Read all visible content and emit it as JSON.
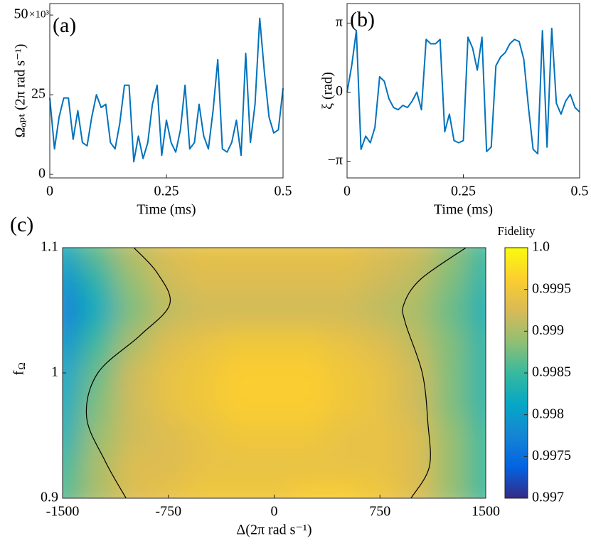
{
  "chart_data": [
    {
      "type": "line",
      "panel": "(a)",
      "xlabel": "Time (ms)",
      "ylabel": "Ωₒₚₜ (2π rad s⁻¹)",
      "y_exponent": "×10³",
      "xlim": [
        0,
        0.5
      ],
      "xticks": [
        0,
        0.25,
        0.5
      ],
      "ylim": [
        -1.1,
        53.6
      ],
      "yticks": [
        0,
        25,
        50
      ],
      "series": [
        {
          "color": "#0072bd",
          "x": [
            0,
            0.01,
            0.02,
            0.03,
            0.04,
            0.05,
            0.06,
            0.07,
            0.08,
            0.09,
            0.1,
            0.11,
            0.12,
            0.13,
            0.14,
            0.15,
            0.16,
            0.17,
            0.18,
            0.19,
            0.2,
            0.21,
            0.22,
            0.23,
            0.24,
            0.25,
            0.26,
            0.27,
            0.28,
            0.29,
            0.3,
            0.31,
            0.32,
            0.33,
            0.34,
            0.35,
            0.36,
            0.37,
            0.38,
            0.39,
            0.4,
            0.41,
            0.42,
            0.43,
            0.44,
            0.45,
            0.46,
            0.47,
            0.48,
            0.49,
            0.5
          ],
          "values": [
            24,
            8,
            18,
            24,
            24,
            11,
            20,
            10,
            9,
            18,
            25,
            21,
            22,
            10,
            8,
            16,
            28,
            28,
            4,
            12,
            5,
            10,
            22,
            28,
            6,
            17,
            10,
            7,
            14,
            28,
            8,
            10,
            22,
            12,
            8,
            20,
            36,
            8,
            7,
            10,
            17,
            6,
            38,
            10,
            22,
            49,
            32,
            18,
            13,
            14,
            27
          ]
        }
      ]
    },
    {
      "type": "line",
      "panel": "(b)",
      "xlabel": "Time (ms)",
      "ylabel": "ξ (rad)",
      "xlim": [
        0,
        0.5
      ],
      "xticks": [
        0,
        0.25,
        0.5
      ],
      "ylim": [
        -3.9,
        4.03
      ],
      "yticks": [
        {
          "value": -3.1416,
          "label": "−π"
        },
        0,
        {
          "value": 3.1416,
          "label": "π"
        }
      ],
      "series": [
        {
          "color": "#0072bd",
          "x": [
            0,
            0.01,
            0.02,
            0.03,
            0.04,
            0.05,
            0.06,
            0.07,
            0.08,
            0.09,
            0.1,
            0.11,
            0.12,
            0.13,
            0.14,
            0.15,
            0.16,
            0.17,
            0.18,
            0.19,
            0.2,
            0.21,
            0.22,
            0.23,
            0.24,
            0.25,
            0.26,
            0.27,
            0.28,
            0.29,
            0.3,
            0.31,
            0.32,
            0.33,
            0.34,
            0.35,
            0.36,
            0.37,
            0.38,
            0.39,
            0.4,
            0.41,
            0.42,
            0.43,
            0.44,
            0.45,
            0.46,
            0.47,
            0.48,
            0.49,
            0.5
          ],
          "values": [
            0,
            1.2,
            2.8,
            -2.6,
            -2.0,
            -2.3,
            -1.6,
            0.7,
            0.5,
            -0.3,
            -0.7,
            -0.8,
            -0.6,
            -0.7,
            -0.4,
            0.0,
            -0.8,
            2.4,
            2.2,
            2.2,
            2.4,
            -1.8,
            -1.0,
            -2.2,
            -2.3,
            -2.2,
            2.5,
            2.0,
            1.0,
            2.5,
            -2.7,
            -2.5,
            1.2,
            1.6,
            1.8,
            2.2,
            2.4,
            2.3,
            1.5,
            -0.7,
            -2.6,
            -2.8,
            2.8,
            -2.5,
            2.9,
            -0.5,
            -1.0,
            -0.4,
            -0.1,
            -0.7,
            -0.9
          ]
        }
      ]
    },
    {
      "type": "heatmap",
      "panel": "(c)",
      "xlabel": "Δ(2π rad s⁻¹)",
      "ylabel": "f",
      "ylabel_sub": "Ω",
      "xlim": [
        -1500,
        1500
      ],
      "xticks": [
        -1500,
        -750,
        0,
        750,
        1500
      ],
      "ylim": [
        0.9,
        1.1
      ],
      "yticks": [
        0.9,
        1,
        1.1
      ],
      "x": [
        -1500,
        -1250,
        -1000,
        -750,
        -500,
        -250,
        0,
        250,
        500,
        750,
        1000,
        1250,
        1500
      ],
      "y": [
        0.9,
        0.925,
        0.95,
        0.975,
        1.0,
        1.025,
        1.05,
        1.075,
        1.1
      ],
      "z": [
        [
          0.9986,
          0.999,
          0.9993,
          0.9994,
          0.9995,
          0.9995,
          0.9995,
          0.9996,
          0.9996,
          0.9995,
          0.9993,
          0.9989,
          0.9985
        ],
        [
          0.9985,
          0.999,
          0.9993,
          0.9993,
          0.9994,
          0.9994,
          0.9994,
          0.9994,
          0.9994,
          0.9994,
          0.9993,
          0.9989,
          0.9985
        ],
        [
          0.9983,
          0.9989,
          0.9992,
          0.9993,
          0.9994,
          0.9995,
          0.9995,
          0.9995,
          0.9994,
          0.9994,
          0.9993,
          0.9989,
          0.9985
        ],
        [
          0.9982,
          0.9988,
          0.9992,
          0.9994,
          0.9995,
          0.9996,
          0.9996,
          0.9996,
          0.9995,
          0.9994,
          0.9992,
          0.9988,
          0.9984
        ],
        [
          0.9981,
          0.9987,
          0.9992,
          0.9994,
          0.9995,
          0.9996,
          0.9996,
          0.9996,
          0.9995,
          0.9994,
          0.9992,
          0.9988,
          0.9984
        ],
        [
          0.9979,
          0.9985,
          0.999,
          0.9993,
          0.9994,
          0.9995,
          0.9995,
          0.9995,
          0.9994,
          0.9993,
          0.9991,
          0.9988,
          0.9984
        ],
        [
          0.9977,
          0.9982,
          0.9988,
          0.9991,
          0.9992,
          0.9992,
          0.9992,
          0.9992,
          0.9992,
          0.9991,
          0.999,
          0.9987,
          0.9983
        ],
        [
          0.9979,
          0.9984,
          0.9989,
          0.9992,
          0.9993,
          0.9993,
          0.9993,
          0.9993,
          0.9993,
          0.9992,
          0.9991,
          0.9988,
          0.9984
        ],
        [
          0.9982,
          0.9987,
          0.9991,
          0.9993,
          0.9994,
          0.9994,
          0.9994,
          0.9994,
          0.9994,
          0.9993,
          0.9992,
          0.9989,
          0.9985
        ]
      ],
      "colormap": [
        "#352a87",
        "#0363e1",
        "#1485d4",
        "#06a7c6",
        "#38b99e",
        "#92bf73",
        "#d9ba56",
        "#fcce2e",
        "#f9fb0e"
      ],
      "contours": [
        {
          "x": [
            -1050,
            -1200,
            -1330,
            -1250,
            -950,
            -740,
            -830,
            -995
          ],
          "y": [
            0.9,
            0.93,
            0.965,
            1.0,
            1.03,
            1.055,
            1.08,
            1.1
          ]
        },
        {
          "x": [
            970,
            1100,
            1090,
            1050,
            930,
            920,
            1040,
            1360
          ],
          "y": [
            0.9,
            0.925,
            0.96,
            1.0,
            1.04,
            1.055,
            1.075,
            1.1
          ]
        }
      ],
      "colorbar": {
        "title": "Fidelity",
        "lim": [
          0.997,
          1
        ],
        "ticks": [
          0.997,
          0.9975,
          0.998,
          0.9985,
          0.999,
          0.9995,
          {
            "value": 1,
            "label": "1.0"
          }
        ]
      }
    }
  ]
}
